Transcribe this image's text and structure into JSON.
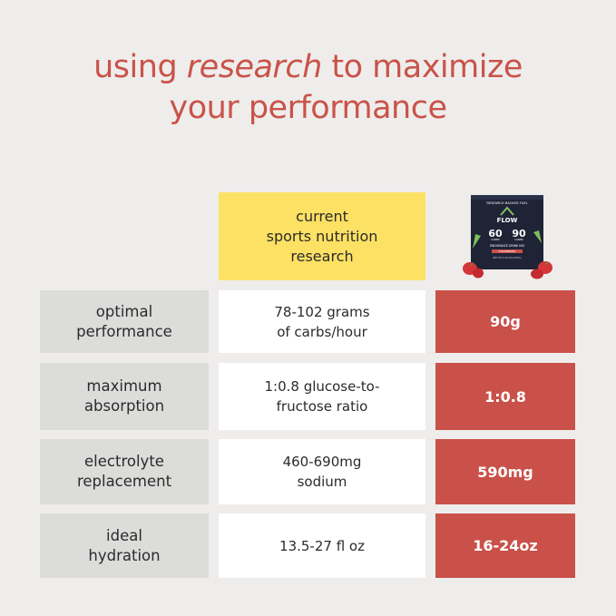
{
  "headline": {
    "part1": "using ",
    "emphasis": "research",
    "part2": " to maximize",
    "line2": "your performance"
  },
  "column_header": "current\nsports nutrition\nresearch",
  "product_image": {
    "label_top": "RESEARCH BACKED FUEL",
    "brand": "FLOW",
    "carbs_left": "60",
    "carbs_right": "90",
    "carbs_sub_left": "CARBS",
    "carbs_sub_right": "CARBS",
    "subtitle": "ENDURANCE DRINK MIX",
    "flavor": "STRAWBERRY",
    "net_wt": "NET WT 2.29 LB (1037G)",
    "accent_color": "#c9514a"
  },
  "rows": [
    {
      "label": "optimal\nperformance",
      "research": "78-102 grams\nof carbs/hour",
      "flow": "90g"
    },
    {
      "label": "maximum\nabsorption",
      "research": "1:0.8 glucose-to-\nfructose ratio",
      "flow": "1:0.8"
    },
    {
      "label": "electrolyte\nreplacement",
      "research": "460-690mg\nsodium",
      "flow": "590mg"
    },
    {
      "label": "ideal\nhydration",
      "research": "13.5-27 fl oz",
      "flow": "16-24oz"
    }
  ],
  "colors": {
    "background": "#efedeb",
    "headline": "#c9534a",
    "header_yellow": "#fce164",
    "label_grey": "#dcdcdb",
    "flow_red": "#c9514a"
  }
}
